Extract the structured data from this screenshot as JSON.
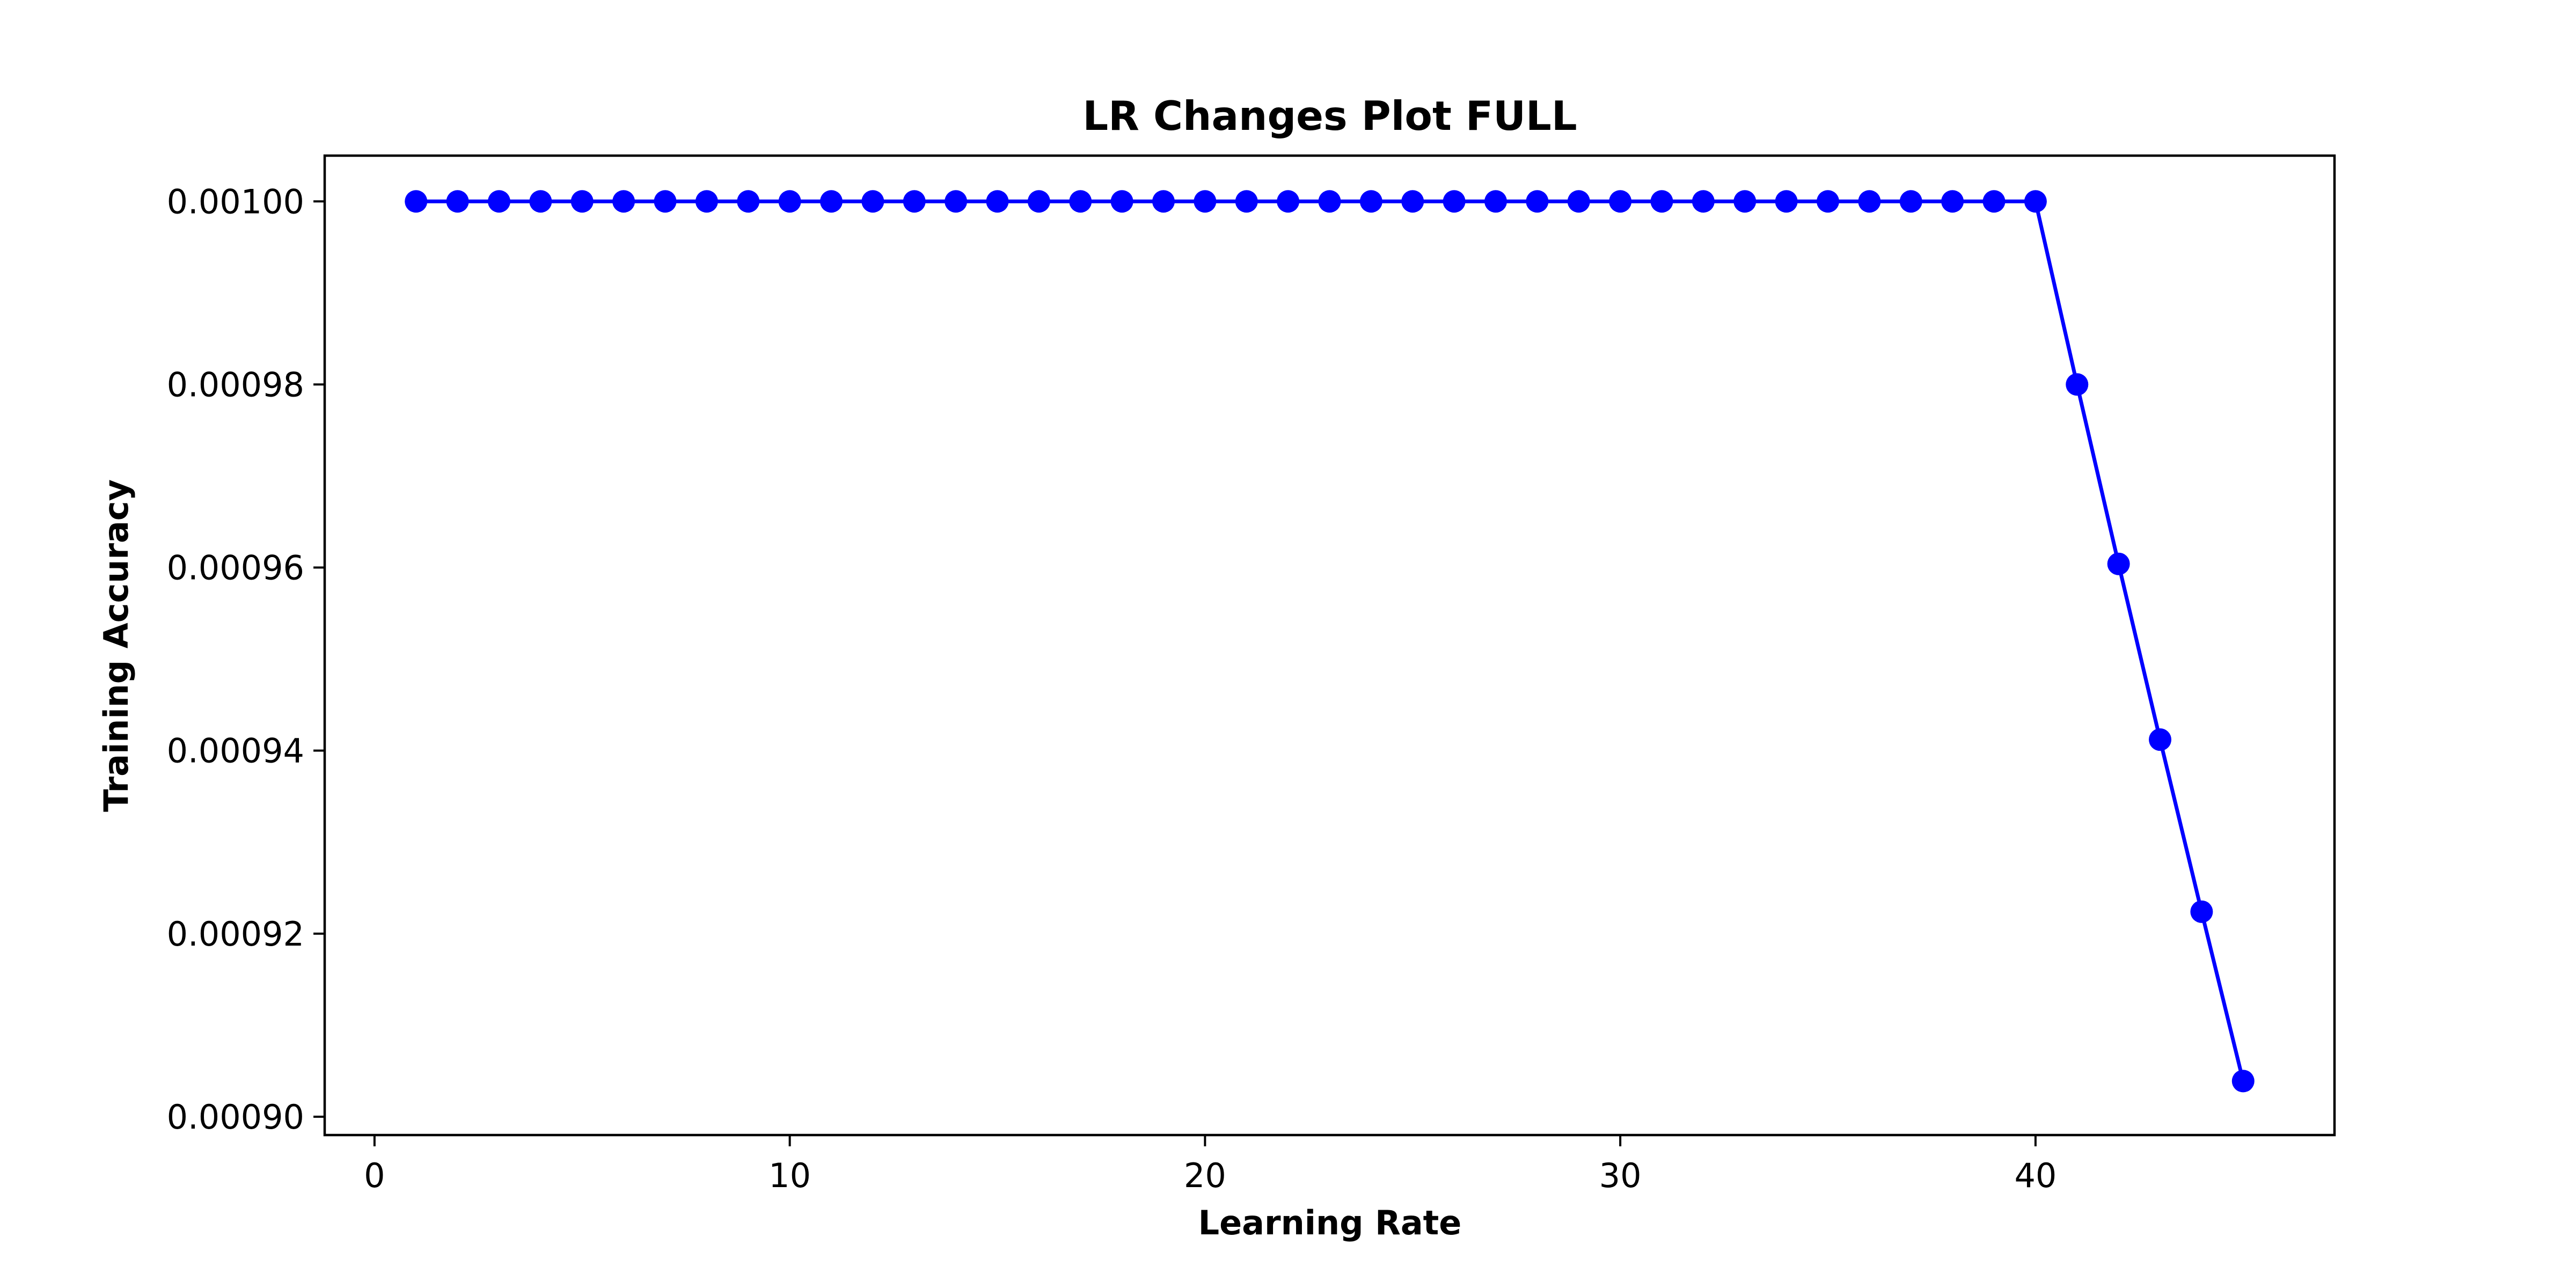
{
  "chart_data": {
    "type": "line",
    "title": "LR Changes Plot FULL",
    "xlabel": "Learning Rate",
    "ylabel": "Training Accuracy",
    "xlim": [
      -1.2,
      47.2
    ],
    "ylim": [
      0.000898,
      0.001005
    ],
    "xticks": [
      0,
      10,
      20,
      30,
      40
    ],
    "xtick_labels": [
      "0",
      "10",
      "20",
      "30",
      "40"
    ],
    "yticks": [
      0.0009,
      0.00092,
      0.00094,
      0.00096,
      0.00098,
      0.001
    ],
    "ytick_labels": [
      "0.00090",
      "0.00092",
      "0.00094",
      "0.00096",
      "0.00098",
      "0.00100"
    ],
    "grid": false,
    "series": [
      {
        "color": "#0000ff",
        "marker": "circle",
        "x": [
          1,
          2,
          3,
          4,
          5,
          6,
          7,
          8,
          9,
          10,
          11,
          12,
          13,
          14,
          15,
          16,
          17,
          18,
          19,
          20,
          21,
          22,
          23,
          24,
          25,
          26,
          27,
          28,
          29,
          30,
          31,
          32,
          33,
          34,
          35,
          36,
          37,
          38,
          39,
          40,
          41,
          42,
          43,
          44,
          45
        ],
        "y": [
          0.001,
          0.001,
          0.001,
          0.001,
          0.001,
          0.001,
          0.001,
          0.001,
          0.001,
          0.001,
          0.001,
          0.001,
          0.001,
          0.001,
          0.001,
          0.001,
          0.001,
          0.001,
          0.001,
          0.001,
          0.001,
          0.001,
          0.001,
          0.001,
          0.001,
          0.001,
          0.001,
          0.001,
          0.001,
          0.001,
          0.001,
          0.001,
          0.001,
          0.001,
          0.001,
          0.001,
          0.001,
          0.001,
          0.001,
          0.001,
          0.00098,
          0.0009604,
          0.0009412,
          0.0009224,
          0.0009039
        ]
      }
    ]
  }
}
